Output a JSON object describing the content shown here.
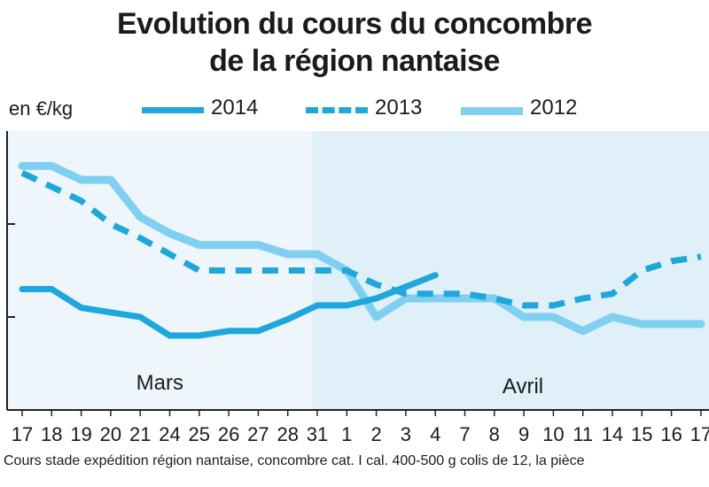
{
  "header": {
    "title_line1": "Evolution du cours du concombre",
    "title_line2": "de la région nantaise",
    "unit": "en €/kg"
  },
  "legend": [
    {
      "label": "2014",
      "style": "solid",
      "color": "#1ea7dc"
    },
    {
      "label": "2013",
      "style": "dashed",
      "color": "#1ea7dc"
    },
    {
      "label": "2012",
      "style": "solid",
      "color": "#7fd0f0"
    }
  ],
  "footnote": "Cours stade expédition région nantaise, concombre cat. I cal. 400-500 g colis de 12, la pièce",
  "colors": {
    "band_mars": "#eef5fb",
    "band_avril": "#dff0f9",
    "axis": "#222222",
    "series_2014": "#1ea7dc",
    "series_2013": "#1ea7dc",
    "series_2012": "#7fd0f0"
  },
  "chart_data": {
    "type": "line",
    "title": "Evolution du cours du concombre de la région nantaise",
    "ylabel": "en €/kg",
    "xlabel": "",
    "categories": [
      "17",
      "18",
      "19",
      "20",
      "21",
      "24",
      "25",
      "26",
      "27",
      "28",
      "31",
      "1",
      "2",
      "3",
      "4",
      "7",
      "8",
      "9",
      "10",
      "11",
      "14",
      "15",
      "16",
      "17"
    ],
    "periods": [
      {
        "label": "Mars",
        "from": "17",
        "to": "31"
      },
      {
        "label": "Avril",
        "from": "1",
        "to": "17"
      }
    ],
    "y_ticks_labeled": false,
    "series": [
      {
        "name": "2014",
        "style": "solid",
        "values": [
          0.52,
          0.52,
          0.44,
          0.42,
          0.4,
          0.32,
          0.32,
          0.34,
          0.34,
          0.39,
          0.45,
          0.45,
          0.48,
          0.53,
          0.58,
          null,
          null,
          null,
          null,
          null,
          null,
          null,
          null,
          null
        ]
      },
      {
        "name": "2013",
        "style": "dashed",
        "values": [
          1.02,
          0.96,
          0.9,
          0.8,
          0.74,
          0.67,
          0.6,
          0.6,
          0.6,
          0.6,
          0.6,
          0.6,
          0.54,
          0.5,
          0.5,
          0.5,
          0.48,
          0.45,
          0.45,
          0.48,
          0.5,
          0.6,
          0.64,
          0.66
        ]
      },
      {
        "name": "2012",
        "style": "solid",
        "values": [
          1.05,
          1.05,
          0.99,
          0.99,
          0.83,
          0.76,
          0.71,
          0.71,
          0.71,
          0.67,
          0.67,
          0.6,
          0.4,
          0.48,
          0.48,
          0.48,
          0.48,
          0.4,
          0.4,
          0.34,
          0.4,
          0.37,
          0.37,
          0.37
        ]
      }
    ],
    "legend_position": "top",
    "grid": false
  }
}
